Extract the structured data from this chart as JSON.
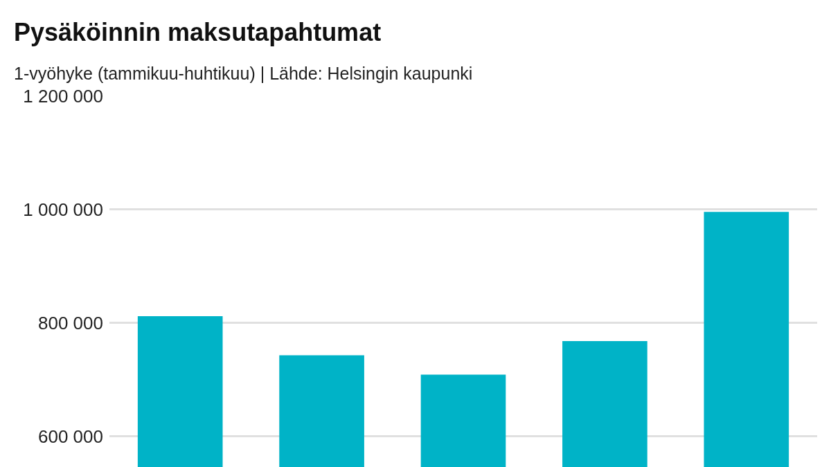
{
  "chart_data": {
    "type": "bar",
    "title": "Pysäköinnin maksutapahtumat",
    "subtitle": "1-vyöhyke (tammikuu-huhtikuu) | Lähde: Helsingin kaupunki",
    "categories": [
      null,
      null,
      null,
      null,
      null
    ],
    "values": [
      812000,
      743000,
      709000,
      768000,
      996000
    ],
    "color": "#00b3c7",
    "ylim": [
      546000,
      1200000
    ],
    "yticks": [
      {
        "value": 600000,
        "label": "600 000"
      },
      {
        "value": 800000,
        "label": "800 000"
      },
      {
        "value": 1000000,
        "label": "1 000 000"
      },
      {
        "value": 1200000,
        "label": "1 200 000"
      }
    ],
    "grid": "y",
    "tick_labels": "y"
  }
}
